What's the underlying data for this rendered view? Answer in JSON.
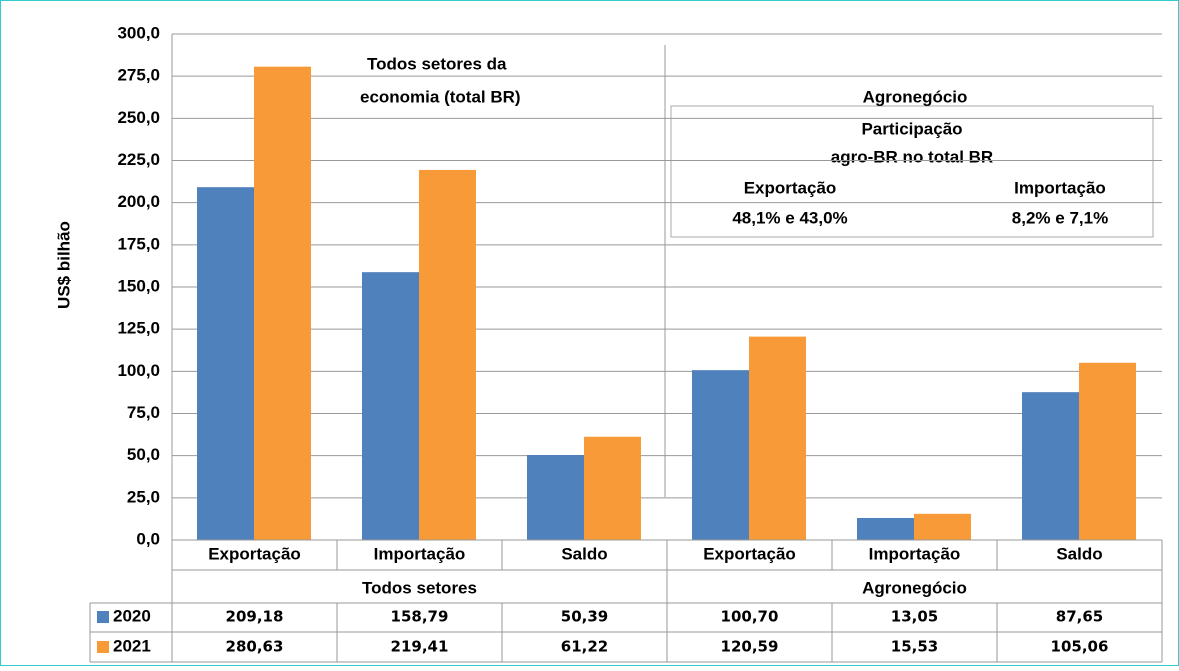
{
  "chart_data": {
    "type": "bar",
    "ylabel": "US$  bilhão",
    "categories": [
      "Exportação",
      "Importação",
      "Saldo",
      "Exportação",
      "Importação",
      "Saldo"
    ],
    "groups": [
      "Todos setores",
      "Agronegócio"
    ],
    "series": [
      {
        "name": "2020",
        "color": "#4f81bd",
        "values": [
          209.18,
          158.79,
          50.39,
          100.7,
          13.05,
          87.65
        ],
        "value_labels": [
          "209,18",
          "158,79",
          "50,39",
          "100,70",
          "13,05",
          "87,65"
        ]
      },
      {
        "name": "2021",
        "color": "#f99a38",
        "values": [
          280.63,
          219.41,
          61.22,
          120.59,
          15.53,
          105.06
        ],
        "value_labels": [
          "280,63",
          "219,41",
          "61,22",
          "120,59",
          "15,53",
          "105,06"
        ]
      }
    ],
    "ylim": [
      0,
      300
    ],
    "yticks": [
      {
        "value": 0,
        "label": "0,0"
      },
      {
        "value": 25,
        "label": "25,0"
      },
      {
        "value": 50,
        "label": "50,0"
      },
      {
        "value": 75,
        "label": "75,0"
      },
      {
        "value": 100,
        "label": "100,0"
      },
      {
        "value": 125,
        "label": "125,0"
      },
      {
        "value": 150,
        "label": "150,0"
      },
      {
        "value": 175,
        "label": "175,0"
      },
      {
        "value": 200,
        "label": "200,0"
      },
      {
        "value": 225,
        "label": "225,0"
      },
      {
        "value": 250,
        "label": "250,0"
      },
      {
        "value": 275,
        "label": "275,0"
      },
      {
        "value": 300,
        "label": "300,0"
      }
    ],
    "grid": true,
    "annotations": [
      "Todos setores da",
      "economia (total BR)",
      "Agronegócio"
    ],
    "box": {
      "title": [
        "Participação",
        "agro-BR no total BR"
      ],
      "columns": [
        {
          "label": "Exportação",
          "value": "48,1% e 43,0%"
        },
        {
          "label": "Importação",
          "value": "8,2% e 7,1%"
        }
      ]
    }
  }
}
